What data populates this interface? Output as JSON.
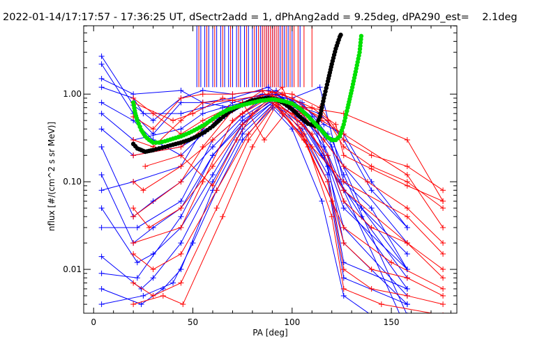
{
  "chart_data": {
    "type": "line",
    "title": "2022-01-14/17:17:57 - 17:36:25 UT, dSectr2add = 1, dPhAng2add = 9.25deg, dPA290_est=    2.1deg",
    "xlabel": "PA [deg]",
    "ylabel": "nflux [#/(cm^2 s sr MeV)]",
    "xlim": [
      -5,
      183
    ],
    "ylim_log10": [
      -2.5,
      0.78
    ],
    "y_scale": "log",
    "x_ticks": [
      0,
      50,
      100,
      150
    ],
    "x_tick_labels": [
      "0",
      "50",
      "100",
      "150"
    ],
    "y_ticks": [
      0.01,
      0.1,
      1.0
    ],
    "y_tick_labels": [
      "0.01",
      "0.10",
      "1.00"
    ],
    "colors": {
      "red": "#ff0000",
      "blue": "#0000ff",
      "black": "#000000",
      "green": "#00e000"
    },
    "series": [
      {
        "color": "black",
        "marker": "circle",
        "x": [
          20,
          22,
          24,
          26,
          28,
          30,
          33,
          36,
          40,
          44,
          48,
          52,
          56,
          60,
          64,
          68,
          72,
          76,
          80,
          84,
          88,
          92,
          96,
          100,
          104,
          108,
          112,
          114,
          116,
          118,
          120,
          122,
          124,
          125
        ],
        "y": [
          0.27,
          0.24,
          0.23,
          0.22,
          0.225,
          0.23,
          0.24,
          0.25,
          0.265,
          0.28,
          0.3,
          0.33,
          0.37,
          0.43,
          0.52,
          0.62,
          0.7,
          0.78,
          0.85,
          0.88,
          0.9,
          0.87,
          0.78,
          0.67,
          0.55,
          0.46,
          0.43,
          0.55,
          0.9,
          1.4,
          2.2,
          3.3,
          4.5,
          5.0
        ]
      },
      {
        "color": "green",
        "marker": "circle",
        "x": [
          20,
          21,
          22,
          24,
          26,
          28,
          30,
          33,
          36,
          40,
          44,
          48,
          52,
          56,
          60,
          64,
          68,
          72,
          76,
          80,
          84,
          88,
          90,
          92,
          96,
          100,
          104,
          108,
          112,
          116,
          118,
          120,
          122,
          124,
          126,
          128,
          130,
          132,
          134,
          135
        ],
        "y": [
          0.8,
          0.6,
          0.5,
          0.39,
          0.33,
          0.3,
          0.28,
          0.28,
          0.29,
          0.31,
          0.33,
          0.36,
          0.4,
          0.45,
          0.52,
          0.6,
          0.67,
          0.72,
          0.76,
          0.8,
          0.84,
          0.86,
          0.87,
          0.86,
          0.83,
          0.78,
          0.68,
          0.56,
          0.45,
          0.36,
          0.32,
          0.3,
          0.3,
          0.33,
          0.45,
          0.7,
          1.1,
          1.8,
          3.0,
          5.0
        ]
      },
      {
        "color": "blue",
        "name": "",
        "lines": [
          {
            "x": [
              4,
              20,
              30,
              44,
              55,
              70,
              88,
              100,
              114,
              126,
              140,
              158
            ],
            "y": [
              2.7,
              0.75,
              0.5,
              0.9,
              1.1,
              1.0,
              1.1,
              0.9,
              1.2,
              0.1,
              0.05,
              0.01
            ]
          },
          {
            "x": [
              4,
              20,
              30,
              44,
              55,
              70,
              88,
              100,
              114,
              126,
              140,
              158
            ],
            "y": [
              2.2,
              0.6,
              0.35,
              0.8,
              0.8,
              0.9,
              1.2,
              0.75,
              0.6,
              0.3,
              0.08,
              0.03
            ]
          },
          {
            "x": [
              4,
              20,
              25,
              44,
              55,
              70,
              90,
              105,
              120,
              135,
              158
            ],
            "y": [
              1.2,
              0.9,
              0.6,
              0.6,
              0.7,
              0.85,
              1.0,
              0.8,
              0.3,
              0.05,
              0.01
            ]
          },
          {
            "x": [
              4,
              20,
              44,
              55,
              65,
              75,
              90,
              100,
              110,
              124,
              135,
              158
            ],
            "y": [
              0.6,
              0.3,
              0.4,
              0.6,
              0.7,
              0.8,
              1.0,
              0.85,
              0.55,
              0.1,
              0.04,
              0.008
            ]
          },
          {
            "x": [
              4,
              20,
              30,
              44,
              60,
              75,
              90,
              105,
              116,
              126,
              158
            ],
            "y": [
              0.25,
              0.04,
              0.06,
              0.1,
              0.25,
              0.55,
              0.9,
              0.6,
              0.25,
              0.06,
              0.006
            ]
          },
          {
            "x": [
              4,
              20,
              30,
              44,
              60,
              75,
              90,
              105,
              116,
              126,
              158
            ],
            "y": [
              0.12,
              0.02,
              0.03,
              0.05,
              0.2,
              0.5,
              0.85,
              0.5,
              0.2,
              0.03,
              0.005
            ]
          },
          {
            "x": [
              4,
              22,
              30,
              44,
              60,
              75,
              90,
              105,
              118,
              126,
              158
            ],
            "y": [
              0.05,
              0.012,
              0.015,
              0.03,
              0.12,
              0.45,
              0.8,
              0.45,
              0.15,
              0.02,
              0.004
            ]
          },
          {
            "x": [
              4,
              24,
              30,
              44,
              60,
              75,
              90,
              105,
              118,
              126,
              158
            ],
            "y": [
              0.014,
              0.006,
              0.008,
              0.02,
              0.1,
              0.4,
              0.8,
              0.4,
              0.12,
              0.012,
              0.006
            ]
          },
          {
            "x": [
              4,
              24,
              35,
              44,
              60,
              75,
              90,
              105,
              118,
              126,
              158
            ],
            "y": [
              0.006,
              0.004,
              0.006,
              0.01,
              0.08,
              0.35,
              0.75,
              0.35,
              0.1,
              0.008,
              0.004
            ]
          },
          {
            "x": [
              4,
              25,
              40,
              50,
              62,
              75,
              90,
              100,
              115,
              126,
              140
            ],
            "y": [
              0.004,
              0.005,
              0.007,
              0.02,
              0.08,
              0.3,
              0.7,
              0.4,
              0.06,
              0.005,
              0.003
            ]
          },
          {
            "x": [
              4,
              20,
              44,
              55,
              65,
              75,
              88,
              100,
              116,
              126,
              158
            ],
            "y": [
              0.4,
              0.2,
              0.25,
              0.35,
              0.6,
              0.75,
              0.95,
              0.7,
              0.3,
              0.15,
              0.02
            ]
          },
          {
            "x": [
              4,
              20,
              30,
              44,
              55,
              66,
              80,
              92,
              106,
              118,
              126,
              158
            ],
            "y": [
              0.8,
              0.5,
              0.3,
              0.2,
              0.35,
              0.55,
              0.85,
              1.0,
              0.6,
              0.35,
              0.08,
              0.015
            ]
          },
          {
            "x": [
              4,
              20,
              44,
              55,
              70,
              85,
              95,
              110,
              126,
              158
            ],
            "y": [
              0.08,
              0.1,
              0.15,
              0.4,
              0.8,
              1.0,
              0.9,
              0.5,
              0.05,
              0.01
            ]
          },
          {
            "x": [
              4,
              22,
              44,
              60,
              75,
              92,
              105,
              120,
              126,
              158
            ],
            "y": [
              0.03,
              0.03,
              0.06,
              0.3,
              0.6,
              1.1,
              0.7,
              0.25,
              0.12,
              0.003
            ]
          },
          {
            "x": [
              4,
              22,
              44,
              60,
              80,
              92,
              105,
              115,
              126,
              158
            ],
            "y": [
              0.009,
              0.008,
              0.04,
              0.2,
              0.6,
              0.9,
              0.5,
              0.2,
              0.08,
              0.002
            ]
          },
          {
            "x": [
              4,
              20,
              44,
              55,
              70,
              88,
              104,
              116,
              126,
              140,
              158
            ],
            "y": [
              1.5,
              1.0,
              1.1,
              0.8,
              0.7,
              0.9,
              0.8,
              0.45,
              0.35,
              0.1,
              0.03
            ]
          }
        ]
      },
      {
        "color": "red",
        "name": "",
        "lines": [
          {
            "x": [
              20,
              30,
              44,
              55,
              70,
              85,
              100,
              114,
              126,
              140,
              158,
              176
            ],
            "y": [
              0.55,
              0.4,
              0.9,
              1.0,
              1.0,
              1.1,
              1.0,
              0.7,
              0.3,
              0.2,
              0.15,
              0.08
            ]
          },
          {
            "x": [
              20,
              30,
              44,
              55,
              70,
              88,
              100,
              118,
              126,
              140,
              158,
              176
            ],
            "y": [
              0.3,
              0.25,
              0.5,
              0.8,
              0.85,
              1.0,
              0.8,
              0.5,
              0.25,
              0.15,
              0.1,
              0.05
            ]
          },
          {
            "x": [
              20,
              25,
              44,
              60,
              75,
              90,
              105,
              116,
              126,
              138,
              158,
              176
            ],
            "y": [
              0.1,
              0.08,
              0.15,
              0.3,
              0.6,
              0.95,
              0.6,
              0.3,
              0.15,
              0.1,
              0.05,
              0.02
            ]
          },
          {
            "x": [
              20,
              28,
              44,
              60,
              75,
              90,
              105,
              118,
              126,
              140,
              158,
              176
            ],
            "y": [
              0.05,
              0.03,
              0.05,
              0.15,
              0.45,
              0.9,
              0.45,
              0.2,
              0.06,
              0.03,
              0.02,
              0.01
            ]
          },
          {
            "x": [
              20,
              30,
              44,
              62,
              78,
              92,
              106,
              118,
              126,
              140,
              158,
              176
            ],
            "y": [
              0.015,
              0.01,
              0.015,
              0.08,
              0.35,
              0.85,
              0.35,
              0.1,
              0.02,
              0.01,
              0.008,
              0.005
            ]
          },
          {
            "x": [
              20,
              30,
              44,
              62,
              78,
              92,
              106,
              120,
              126,
              140,
              158,
              176
            ],
            "y": [
              0.007,
              0.005,
              0.007,
              0.05,
              0.3,
              0.8,
              0.3,
              0.06,
              0.01,
              0.006,
              0.005,
              0.004
            ]
          },
          {
            "x": [
              20,
              35,
              45,
              65,
              80,
              92,
              108,
              120,
              126,
              145,
              176
            ],
            "y": [
              0.004,
              0.005,
              0.004,
              0.04,
              0.25,
              0.75,
              0.25,
              0.04,
              0.006,
              0.004,
              0.003
            ]
          },
          {
            "x": [
              20,
              30,
              44,
              55,
              68,
              82,
              95,
              110,
              122,
              126,
              140,
              158,
              176
            ],
            "y": [
              0.9,
              0.6,
              0.35,
              0.5,
              0.7,
              0.85,
              1.0,
              0.7,
              0.45,
              0.2,
              0.14,
              0.09,
              0.06
            ]
          },
          {
            "x": [
              20,
              44,
              60,
              75,
              90,
              100,
              115,
              126,
              158,
              176
            ],
            "y": [
              0.2,
              0.25,
              0.5,
              0.8,
              1.05,
              0.9,
              0.5,
              0.35,
              0.12,
              0.03
            ]
          },
          {
            "x": [
              20,
              44,
              55,
              70,
              85,
              100,
              110,
              126,
              158,
              176
            ],
            "y": [
              0.02,
              0.03,
              0.1,
              0.5,
              0.9,
              0.6,
              0.35,
              0.08,
              0.02,
              0.008
            ]
          },
          {
            "x": [
              20,
              40,
              50,
              65,
              75,
              86,
              100,
              126,
              158,
              176
            ],
            "y": [
              0.8,
              0.5,
              0.6,
              0.9,
              0.8,
              0.3,
              0.75,
              0.6,
              0.3,
              0.06
            ]
          },
          {
            "x": [
              26,
              44,
              60,
              72,
              80,
              95,
              104,
              126,
              150,
              176
            ],
            "y": [
              0.15,
              0.2,
              0.09,
              0.3,
              0.6,
              1.2,
              0.4,
              0.03,
              0.012,
              0.006
            ]
          },
          {
            "x": [
              20,
              44,
              55,
              70,
              85,
              95,
              110,
              126,
              158,
              176
            ],
            "y": [
              0.04,
              0.1,
              0.25,
              0.65,
              1.1,
              0.6,
              0.25,
              0.1,
              0.04,
              0.015
            ]
          }
        ]
      }
    ],
    "vertical_lines": {
      "blue_x": [
        52,
        54,
        56,
        58,
        60,
        62,
        64,
        66,
        68,
        70,
        72,
        74,
        76,
        78,
        80,
        82,
        84,
        85,
        86,
        87,
        88,
        89,
        90,
        91,
        92,
        93,
        94,
        95,
        96,
        98,
        100,
        104
      ],
      "red_x": [
        53,
        57,
        61,
        65,
        69,
        73,
        77,
        81,
        83,
        85,
        86,
        87,
        88,
        89,
        90,
        91,
        92,
        93,
        95,
        97,
        99,
        101,
        103,
        106,
        110
      ],
      "y_bottom": 1.2,
      "y_top": 6.0
    }
  }
}
